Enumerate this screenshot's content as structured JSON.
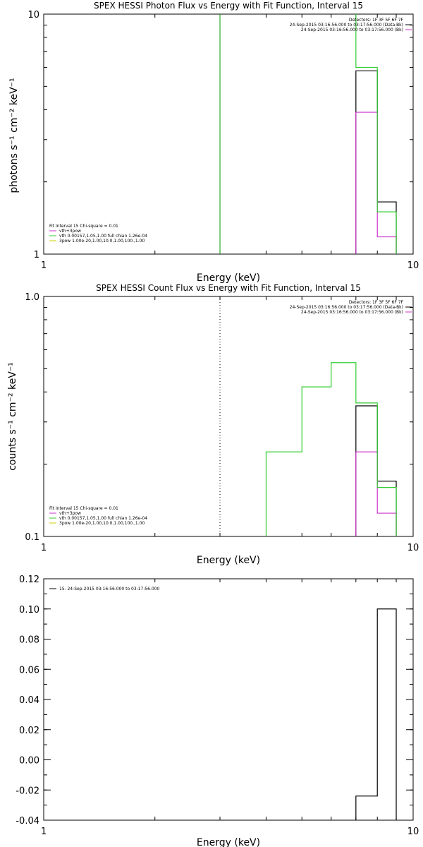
{
  "colors": {
    "background": "#ffffff",
    "axis": "#000000",
    "vth_plus_3pow": "#cc33cc",
    "vth": "#33cc33",
    "3pow": "#cccc00",
    "data_black": "#000000",
    "data_magenta": "#cc33cc",
    "marker_green": "#009900"
  },
  "chart_data": [
    {
      "id": "photon",
      "type": "line",
      "title": "SPEX HESSI Photon Flux vs Energy with Fit Function, Interval 15",
      "xlabel": "Energy (keV)",
      "ylabel": "photons s⁻¹ cm⁻² keV⁻¹",
      "xscale": "log",
      "yscale": "log",
      "xlim": [
        1,
        10
      ],
      "ylim": [
        1,
        10
      ],
      "xticks": [
        {
          "value": 1,
          "label": "1"
        },
        {
          "value": 10,
          "label": "10"
        }
      ],
      "yticks": [
        {
          "value": 1,
          "label": "1"
        },
        {
          "value": 10,
          "label": "10"
        }
      ],
      "marker_line": {
        "x": 3.0,
        "style": "solid",
        "color": "#009900"
      },
      "legend_right": {
        "header": "Detectors: 1F 3F 5F 6F 7F",
        "entries": [
          {
            "text": "24-Sep-2015 03:16:56.000 to 03:17:56.000 (Data-Bk)",
            "color": "#000000"
          },
          {
            "text": "24-Sep-2015 03:16:56.000 to 03:17:56.000 (Bk)",
            "color": "#cc33cc"
          }
        ]
      },
      "legend_left": {
        "header": "Fit Interval 15    Chi-square = 0.01",
        "entries": [
          {
            "text": "vth+3pow",
            "color": "#cc33cc"
          },
          {
            "text": "vth 0.00157,1.05,1.00  full chian 1.26e-04",
            "color": "#33cc33"
          },
          {
            "text": "3pow 1.00e-20,1.00,10.0,1.00,100.,1.00",
            "color": "#cccc00"
          }
        ]
      },
      "series": [
        {
          "name": "Data-Bk",
          "color": "#000000",
          "edges": [
            7,
            8,
            9
          ],
          "values": [
            5.8,
            1.65
          ]
        },
        {
          "name": "Bk",
          "color": "#cc33cc",
          "edges": [
            7,
            8,
            9
          ],
          "values": [
            3.9,
            1.18
          ]
        },
        {
          "name": "vth",
          "color": "#33cc33",
          "edges": [
            7,
            8,
            9
          ],
          "values": [
            6.0,
            1.5
          ],
          "left_rise_to": 10
        }
      ]
    },
    {
      "id": "count",
      "type": "line",
      "title": "SPEX HESSI Count Flux vs Energy with Fit Function, Interval 15",
      "xlabel": "Energy (keV)",
      "ylabel": "counts s⁻¹ cm⁻² keV⁻¹",
      "xscale": "log",
      "yscale": "log",
      "xlim": [
        1,
        10
      ],
      "ylim": [
        0.1,
        1.0
      ],
      "xticks": [
        {
          "value": 1,
          "label": "1"
        },
        {
          "value": 10,
          "label": "10"
        }
      ],
      "yticks": [
        {
          "value": 0.1,
          "label": "0.1"
        },
        {
          "value": 1.0,
          "label": "1.0"
        }
      ],
      "marker_line": {
        "x": 3.0,
        "style": "dotted",
        "color": "#000000"
      },
      "legend_right": {
        "header": "Detectors: 1F 3F 5F 6F 7F",
        "entries": [
          {
            "text": "24-Sep-2015 03:16:56.000 to 03:17:56.000 (Data-Bk)",
            "color": "#000000"
          },
          {
            "text": "24-Sep-2015 03:16:56.000 to 03:17:56.000 (Bk)",
            "color": "#cc33cc"
          }
        ]
      },
      "legend_left": {
        "header": "Fit Interval 15    Chi-square = 0.01",
        "entries": [
          {
            "text": "vth+3pow",
            "color": "#cc33cc"
          },
          {
            "text": "vth 0.00157,1.05,1.00  full chian 1.26e-04",
            "color": "#33cc33"
          },
          {
            "text": "3pow 1.00e-20,1.00,10.0,1.00,100.,1.00",
            "color": "#cccc00"
          }
        ]
      },
      "series": [
        {
          "name": "Data-Bk",
          "color": "#000000",
          "edges": [
            7,
            8,
            9
          ],
          "values": [
            0.35,
            0.17
          ]
        },
        {
          "name": "Bk",
          "color": "#cc33cc",
          "edges": [
            7,
            8,
            9
          ],
          "values": [
            0.225,
            0.125
          ]
        },
        {
          "name": "vth",
          "color": "#33cc33",
          "edges": [
            4,
            5,
            6,
            7,
            8,
            9
          ],
          "values": [
            0.225,
            0.42,
            0.53,
            0.36,
            0.16
          ]
        }
      ]
    },
    {
      "id": "residual",
      "type": "line",
      "title": "",
      "xlabel": "Energy (keV)",
      "ylabel": "",
      "xscale": "log",
      "yscale": "linear",
      "xlim": [
        1,
        10
      ],
      "ylim": [
        -0.04,
        0.12
      ],
      "xticks": [
        {
          "value": 1,
          "label": "1"
        },
        {
          "value": 10,
          "label": "10"
        }
      ],
      "yticks": [
        {
          "value": 0.12,
          "label": "0.12"
        },
        {
          "value": 0.1,
          "label": "0.10"
        },
        {
          "value": 0.08,
          "label": "0.08"
        },
        {
          "value": 0.06,
          "label": "0.06"
        },
        {
          "value": 0.04,
          "label": "0.04"
        },
        {
          "value": 0.02,
          "label": "0.02"
        },
        {
          "value": 0.0,
          "label": "0.00"
        },
        {
          "value": -0.02,
          "label": "-0.02"
        },
        {
          "value": -0.04,
          "label": "-0.04"
        }
      ],
      "legend_left": {
        "header": "",
        "entries": [
          {
            "text": "15. 24-Sep-2015 03:16:56.000 to 03:17:56.000",
            "color": "#000000"
          }
        ]
      },
      "series": [
        {
          "name": "15. 24-Sep-2015 03:16:56.000 to 03:17:56.000",
          "color": "#000000",
          "edges": [
            7,
            8,
            9
          ],
          "values": [
            -0.024,
            0.1
          ]
        }
      ]
    }
  ]
}
